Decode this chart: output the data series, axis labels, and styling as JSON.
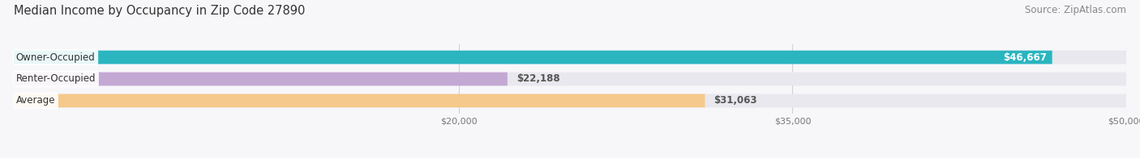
{
  "title": "Median Income by Occupancy in Zip Code 27890",
  "source": "Source: ZipAtlas.com",
  "categories": [
    "Owner-Occupied",
    "Renter-Occupied",
    "Average"
  ],
  "values": [
    46667,
    22188,
    31063
  ],
  "labels": [
    "$46,667",
    "$22,188",
    "$31,063"
  ],
  "bar_colors": [
    "#2ab5bf",
    "#c4a8d4",
    "#f5c98a"
  ],
  "bar_bg_color": "#e8e8ee",
  "xlim": [
    0,
    50000
  ],
  "xticks": [
    20000,
    35000,
    50000
  ],
  "xtick_labels": [
    "$20,000",
    "$35,000",
    "$50,000"
  ],
  "background_color": "#f7f7fa",
  "title_fontsize": 10.5,
  "source_fontsize": 8.5,
  "label_fontsize": 8.5,
  "category_fontsize": 8.5,
  "bar_height": 0.62,
  "grid_color": "#d0d0d8"
}
